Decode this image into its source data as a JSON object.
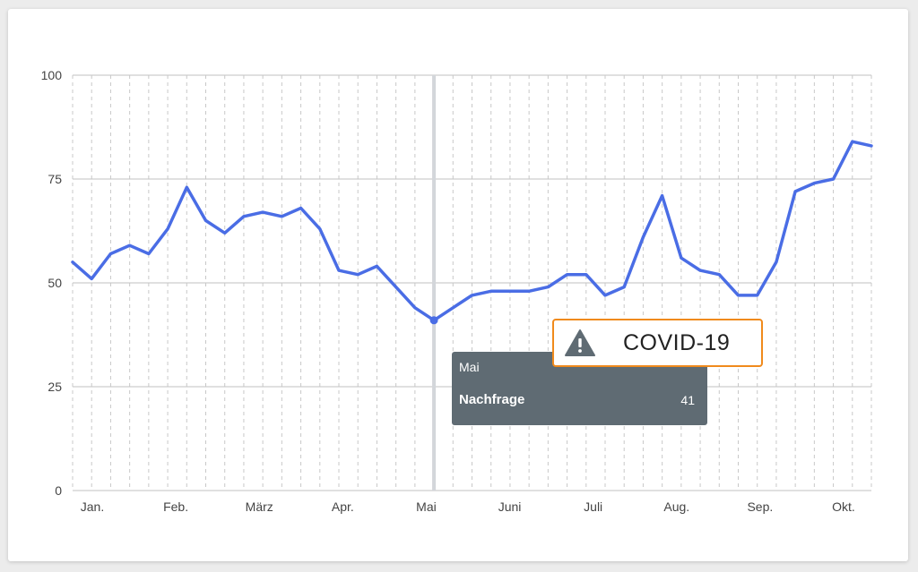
{
  "chart_data": {
    "type": "line",
    "y_ticks": [
      "0",
      "25",
      "50",
      "75",
      "100"
    ],
    "ylim": [
      0,
      100
    ],
    "grid": true,
    "x_labels": [
      "Jan.",
      "Feb.",
      "März",
      "Apr.",
      "Mai",
      "Juni",
      "Juli",
      "Aug.",
      "Sep.",
      "Okt."
    ],
    "series": [
      {
        "name": "Nachfrage",
        "color": "#4a6de5",
        "values": [
          55,
          51,
          57,
          59,
          57,
          63,
          73,
          65,
          62,
          66,
          67,
          66,
          68,
          63,
          53,
          52,
          54,
          49,
          44,
          41,
          44,
          47,
          48,
          48,
          48,
          49,
          52,
          52,
          47,
          49,
          61,
          71,
          56,
          53,
          52,
          47,
          47,
          55,
          72,
          74,
          75,
          84,
          83
        ]
      }
    ],
    "hover": {
      "category": "Mai",
      "series": "Nachfrage",
      "value": "41"
    },
    "annotation": {
      "label": "COVID-19",
      "icon": "warning-icon",
      "border_color": "#f08a1c"
    }
  }
}
